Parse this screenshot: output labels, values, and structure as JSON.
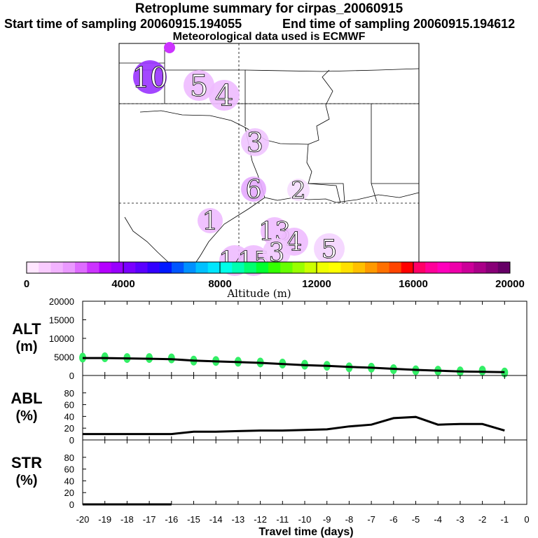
{
  "header": {
    "title": "Retroplume summary for cirpas_20060915",
    "start_text": "Start time of sampling 20060915.194055",
    "end_text": "End time of sampling 20060915.194612",
    "met_text": "Meteorological data used is ECMWF"
  },
  "colorbar": {
    "ticks": [
      "0",
      "4000",
      "8000",
      "12000",
      "16000",
      "20000"
    ],
    "label": "Altitude (m)",
    "colors": [
      "#ffe6ff",
      "#f9ccff",
      "#f2b3ff",
      "#ea99ff",
      "#de6bff",
      "#cc33ff",
      "#b400ff",
      "#9900ff",
      "#7a00ff",
      "#5a00ff",
      "#3300ff",
      "#0018ff",
      "#0055ff",
      "#0090ff",
      "#00c0ff",
      "#00e6ff",
      "#00ffe8",
      "#00ffb0",
      "#00ff70",
      "#00ff30",
      "#33ff00",
      "#66ff00",
      "#99ff00",
      "#ccff00",
      "#f0ff00",
      "#ffff00",
      "#ffe000",
      "#ffc000",
      "#ff9900",
      "#ff7000",
      "#ff4400",
      "#ff0000",
      "#ff0066",
      "#ff0099",
      "#ff00bb",
      "#ee00aa",
      "#cc0099",
      "#aa0088",
      "#880077",
      "#660066"
    ]
  },
  "map": {
    "labels": [
      {
        "text": "10",
        "color": "#9933ff"
      },
      {
        "text": "5",
        "color": "#eebbff"
      },
      {
        "text": "4",
        "color": "#eebbff"
      },
      {
        "text": "3",
        "color": "#f0c4ff"
      },
      {
        "text": "6",
        "color": "#e6aaff"
      },
      {
        "text": "2",
        "color": "#f6ddff"
      },
      {
        "text": "1",
        "color": "#eebbff"
      },
      {
        "text": "13",
        "color": "#eebbff"
      },
      {
        "text": "4",
        "color": "#eebbff"
      },
      {
        "text": "5",
        "color": "#f4d4ff"
      },
      {
        "text": "14",
        "color": "#eebbff"
      },
      {
        "text": "15",
        "color": "#eebbff"
      },
      {
        "text": "3",
        "color": "#f2c8ff"
      }
    ]
  },
  "chart_data": [
    {
      "type": "line",
      "ylabel": "ALT\n(m)",
      "ylim": [
        0,
        20000
      ],
      "yticks": [
        "20000",
        "15000",
        "10000",
        "5000",
        "0"
      ],
      "x": [
        -20,
        -19,
        -18,
        -17,
        -16,
        -15,
        -14,
        -13,
        -12,
        -11,
        -10,
        -9,
        -8,
        -7,
        -6,
        -5,
        -4,
        -3,
        -2,
        -1
      ],
      "series": [
        {
          "values": [
            4700,
            4700,
            4600,
            4500,
            4400,
            4000,
            3800,
            3600,
            3400,
            3100,
            2800,
            2600,
            2300,
            2100,
            1800,
            1500,
            1300,
            1100,
            1000,
            900
          ]
        }
      ],
      "markers": {
        "color": "#33ee66",
        "values": [
          4800,
          4900,
          4700,
          4700,
          4600,
          4000,
          3900,
          3700,
          3500,
          3200,
          2900,
          2600,
          2200,
          2100,
          1700,
          1400,
          1300,
          1100,
          1300,
          800
        ]
      }
    },
    {
      "type": "line",
      "ylabel": "ABL\n(%)",
      "ylim": [
        0,
        100
      ],
      "yticks": [
        "80",
        "60",
        "40",
        "20",
        "0"
      ],
      "x": [
        -20,
        -19,
        -18,
        -17,
        -16,
        -15,
        -14,
        -13,
        -12,
        -11,
        -10,
        -9,
        -8,
        -7,
        -6,
        -5,
        -4,
        -3,
        -2,
        -1
      ],
      "series": [
        {
          "values": [
            10,
            10,
            10,
            10,
            10,
            14,
            14,
            15,
            16,
            16,
            17,
            18,
            23,
            26,
            37,
            39,
            26,
            27,
            27,
            16
          ]
        }
      ]
    },
    {
      "type": "line",
      "ylabel": "STR\n(%)",
      "ylim": [
        0,
        100
      ],
      "yticks": [
        "80",
        "60",
        "40",
        "20",
        "0"
      ],
      "x": [
        -20,
        -19,
        -18,
        -17,
        -16
      ],
      "series": [
        {
          "values": [
            0,
            0,
            0,
            0,
            0
          ]
        }
      ]
    }
  ],
  "xaxis": {
    "ticks": [
      "-20",
      "-19",
      "-18",
      "-17",
      "-16",
      "-15",
      "-14",
      "-13",
      "-12",
      "-11",
      "-10",
      "-9",
      "-8",
      "-7",
      "-6",
      "-5",
      "-4",
      "-3",
      "-2",
      "-1",
      "0"
    ],
    "label": "Travel time (days)"
  }
}
